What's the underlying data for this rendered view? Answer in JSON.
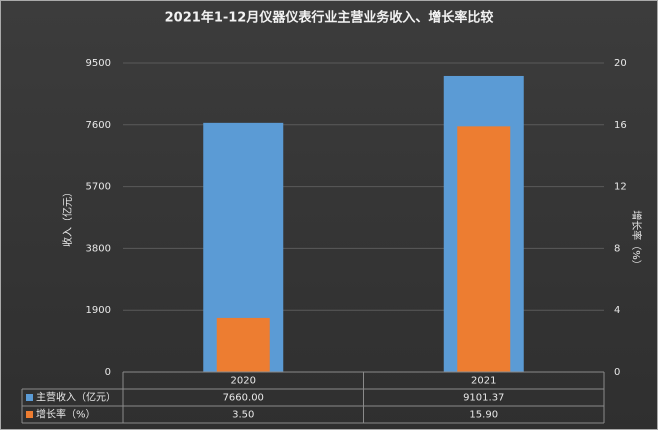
{
  "chart_data": {
    "type": "bar",
    "title": "2021年1-12月仪器仪表行业主营业务收入、增长率比较",
    "y_label": "收入（亿元）",
    "y2_label": "增长率（%）",
    "categories": [
      "2020",
      "2021"
    ],
    "series": [
      {
        "name": "主营收入（亿元）",
        "color": "#5b9bd5",
        "values": [
          7660,
          9101.37
        ],
        "value_labels": [
          "7660.00",
          "9101.37"
        ]
      },
      {
        "name": "增长率（%）",
        "color": "#ed7d31",
        "axis": "y2",
        "values": [
          3.5,
          15.9
        ],
        "value_labels": [
          "3.50",
          "15.90"
        ]
      }
    ],
    "ylim": [
      0,
      9500
    ],
    "yticks": [
      0,
      1900,
      3800,
      5700,
      7600,
      9500
    ],
    "y2lim": [
      0,
      20
    ],
    "y2ticks": [
      0,
      4,
      8,
      12,
      16,
      20
    ]
  }
}
